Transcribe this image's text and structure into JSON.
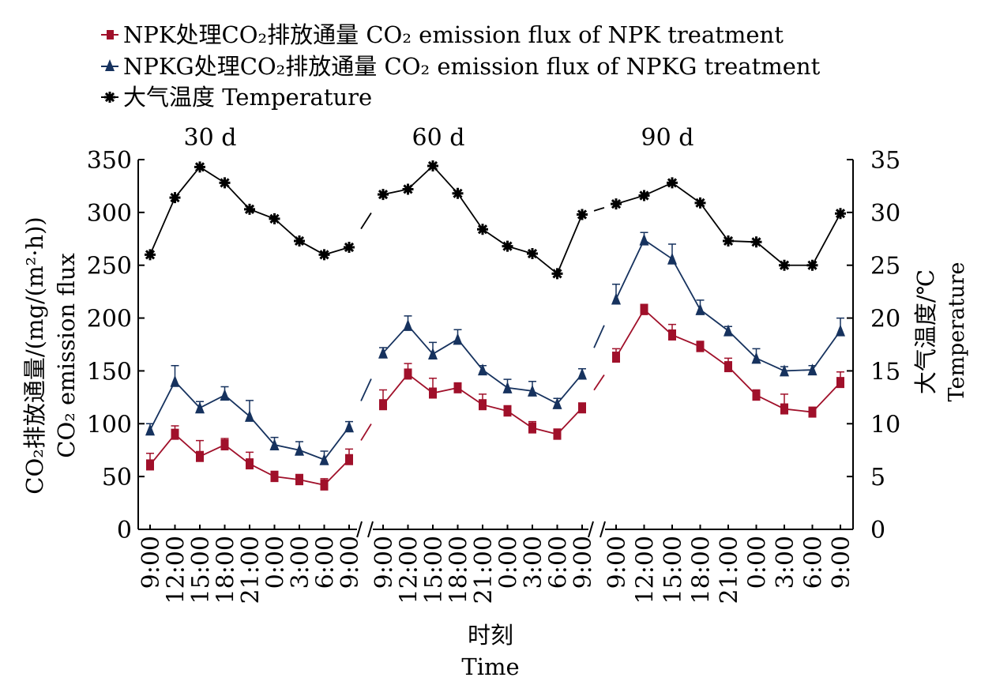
{
  "chart_data": {
    "type": "line",
    "legend": [
      {
        "key": "npk",
        "label": "NPK处理CO₂排放通量 CO₂ emission flux of NPK treatment",
        "color": "#a0102a",
        "marker": "square"
      },
      {
        "key": "npkg",
        "label": "NPKG处理CO₂排放通量 CO₂ emission flux of NPKG treatment",
        "color": "#16325e",
        "marker": "triangle"
      },
      {
        "key": "temp",
        "label": "大气温度 Temperature",
        "color": "#000000",
        "marker": "star"
      }
    ],
    "panels": [
      {
        "title": "30 d",
        "x": [
          "9:00",
          "12:00",
          "15:00",
          "18:00",
          "21:00",
          "0:00",
          "3:00",
          "6:00",
          "9:00"
        ],
        "npk": [
          61,
          90,
          69,
          80,
          62,
          50,
          47,
          42,
          66
        ],
        "npk_err": [
          11,
          8,
          15,
          6,
          11,
          5,
          5,
          6,
          10
        ],
        "npkg": [
          94,
          140,
          115,
          127,
          107,
          80,
          75,
          66,
          97
        ],
        "npkg_err": [
          6,
          15,
          6,
          8,
          15,
          7,
          8,
          8,
          5
        ],
        "temp": [
          26.0,
          31.4,
          34.3,
          32.8,
          30.3,
          29.4,
          27.3,
          26.0,
          26.7
        ]
      },
      {
        "title": "60 d",
        "x": [
          "9:00",
          "12:00",
          "15:00",
          "18:00",
          "21:00",
          "0:00",
          "3:00",
          "6:00",
          "9:00"
        ],
        "npk": [
          118,
          147,
          129,
          134,
          118,
          112,
          96,
          90,
          115
        ],
        "npk_err": [
          14,
          10,
          14,
          4,
          10,
          5,
          6,
          5,
          4
        ],
        "npkg": [
          167,
          193,
          166,
          180,
          151,
          134,
          131,
          119,
          147
        ],
        "npkg_err": [
          5,
          9,
          11,
          9,
          4,
          8,
          9,
          5,
          5
        ],
        "temp": [
          31.7,
          32.2,
          34.4,
          31.8,
          28.4,
          26.8,
          26.1,
          24.2,
          29.8
        ]
      },
      {
        "title": "90 d",
        "x": [
          "9:00",
          "12:00",
          "15:00",
          "18:00",
          "21:00",
          "0:00",
          "3:00",
          "6:00",
          "9:00"
        ],
        "npk": [
          163,
          208,
          184,
          173,
          154,
          127,
          114,
          111,
          139
        ],
        "npk_err": [
          8,
          5,
          10,
          5,
          8,
          5,
          14,
          4,
          10
        ],
        "npkg": [
          218,
          274,
          256,
          208,
          188,
          162,
          150,
          151,
          188
        ],
        "npkg_err": [
          14,
          7,
          14,
          9,
          4,
          9,
          4,
          4,
          12
        ],
        "temp": [
          30.8,
          31.6,
          32.8,
          30.9,
          27.3,
          27.2,
          25.0,
          25.0,
          29.9
        ]
      }
    ],
    "y_left": {
      "lim": [
        0,
        350
      ],
      "ticks": [
        0,
        50,
        100,
        150,
        200,
        250,
        300,
        350
      ],
      "label_cn": "CO₂排放通量/(mg/(m²·h))",
      "label_en": "CO₂ emission flux"
    },
    "y_right": {
      "lim": [
        0,
        35
      ],
      "ticks": [
        0,
        5,
        10,
        15,
        20,
        25,
        30,
        35
      ],
      "label_cn": "大气温度/℃",
      "label_en": "Temperature"
    },
    "x_label_cn": "时刻",
    "x_label_en": "Time"
  }
}
